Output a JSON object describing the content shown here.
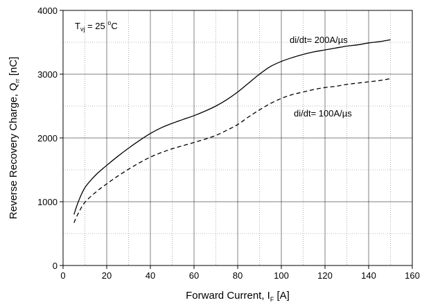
{
  "chart_data": {
    "type": "line",
    "xlabel_main": "Forward Current, I",
    "xlabel_sub": "F",
    "xlabel_unit": " [A]",
    "ylabel_main": "Reverse Recovery Charge, Q",
    "ylabel_sub": "rr",
    "ylabel_unit": " [nC]",
    "xlim": [
      0,
      160
    ],
    "ylim": [
      0,
      4000
    ],
    "xticks": [
      0,
      20,
      40,
      60,
      80,
      100,
      120,
      140,
      160
    ],
    "yticks": [
      0,
      1000,
      2000,
      3000,
      4000
    ],
    "grid": {
      "major": "solid",
      "minor": "dotted"
    },
    "condition": {
      "main": "T",
      "sub": "vj",
      "rest": " = 25 ",
      "sup": "o",
      "unit": "C"
    },
    "series": [
      {
        "name": "di/dt= 200A/µs",
        "style": "solid",
        "x": [
          5,
          7,
          10,
          15,
          20,
          25,
          30,
          35,
          40,
          45,
          50,
          55,
          60,
          65,
          70,
          75,
          80,
          85,
          90,
          95,
          100,
          105,
          110,
          115,
          120,
          125,
          130,
          135,
          140,
          145,
          150
        ],
        "y": [
          800,
          1000,
          1220,
          1420,
          1570,
          1710,
          1840,
          1960,
          2070,
          2160,
          2230,
          2290,
          2350,
          2420,
          2500,
          2600,
          2720,
          2860,
          3000,
          3120,
          3200,
          3260,
          3310,
          3350,
          3380,
          3410,
          3440,
          3460,
          3490,
          3510,
          3540
        ]
      },
      {
        "name": "di/dt= 100A/µs",
        "style": "dashed",
        "x": [
          5,
          7,
          10,
          15,
          20,
          25,
          30,
          35,
          40,
          45,
          50,
          55,
          60,
          65,
          70,
          75,
          80,
          85,
          90,
          95,
          100,
          105,
          110,
          115,
          120,
          125,
          130,
          135,
          140,
          145,
          150
        ],
        "y": [
          670,
          820,
          990,
          1150,
          1280,
          1400,
          1510,
          1610,
          1700,
          1770,
          1830,
          1880,
          1930,
          1980,
          2040,
          2120,
          2210,
          2330,
          2440,
          2540,
          2620,
          2680,
          2720,
          2760,
          2790,
          2810,
          2840,
          2860,
          2880,
          2900,
          2930
        ]
      }
    ]
  }
}
